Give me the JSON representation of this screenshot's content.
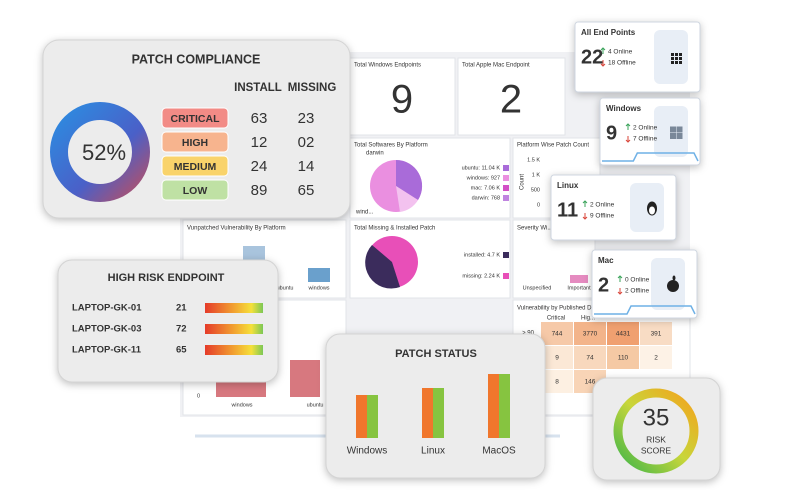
{
  "dashboard": {
    "windows_title": "Total Windows Endpoints",
    "windows_count": "9",
    "mac_title": "Total Apple Mac Endpoint",
    "mac_count": "2",
    "software_title": "Total Softwares By Platform",
    "software_legend": [
      "ubuntu: 11.04 K",
      "windows: 927",
      "mac: 7.06 K",
      "darwin: 768"
    ],
    "software_labels": [
      "darwin",
      "wind..."
    ],
    "platform_patch_title": "Platform Wise Patch Count",
    "platform_patch_ticks": [
      "1.5 K",
      "1 K",
      "500",
      "0"
    ],
    "count_label": "Count",
    "vuln_title": "Vunpatched Vulnerability By Platform",
    "vuln_labels": [
      "ubuntu",
      "windows"
    ],
    "missing_title": "Total Missing & Installed Patch",
    "missing_legend": [
      "installed: 4.7 K",
      "missing: 2.24 K"
    ],
    "severity_title": "Severity Wi...",
    "severity_labels": [
      "Unspecified",
      "Important"
    ],
    "published_title": "Vulnerability by Published Da...",
    "published_row_label": "> 90",
    "published_cols": [
      "Critical",
      "Hig..."
    ],
    "published_rows": [
      [
        "744",
        "3770",
        "4431",
        "391"
      ],
      [
        "9",
        "74",
        "110",
        "2"
      ],
      [
        "8",
        "146"
      ]
    ],
    "bottom_labels": [
      "windows",
      "ubuntu"
    ],
    "bottom_zero": "0"
  },
  "patch_compliance": {
    "title": "PATCH COMPLIANCE",
    "percent": "52%",
    "columns": [
      "INSTALL",
      "MISSING"
    ],
    "rows": [
      [
        "CRITICAL",
        "63",
        "23"
      ],
      [
        "HIGH",
        "12",
        "02"
      ],
      [
        "MEDIUM",
        "24",
        "14"
      ],
      [
        "LOW",
        "89",
        "65"
      ]
    ]
  },
  "high_risk": {
    "title": "HIGH RISK ENDPOINT",
    "rows": [
      [
        "LAPTOP-GK-01",
        "21"
      ],
      [
        "LAPTOP-GK-03",
        "72"
      ],
      [
        "LAPTOP-GK-11",
        "65"
      ]
    ]
  },
  "patch_status": {
    "title": "PATCH STATUS",
    "categories": [
      "Windows",
      "Linux",
      "MacOS"
    ],
    "values": [
      43,
      50,
      64
    ]
  },
  "risk_score": {
    "value": "35",
    "label1": "RISK",
    "label2": "SCORE"
  },
  "endpoints": [
    {
      "title": "All End Points",
      "count": "22",
      "online": "4 Online",
      "offline": "18 Offline"
    },
    {
      "title": "Windows",
      "count": "9",
      "online": "2 Online",
      "offline": "7 Offline"
    },
    {
      "title": "Linux",
      "count": "11",
      "online": "2 Online",
      "offline": "9 Offline"
    },
    {
      "title": "Mac",
      "count": "2",
      "online": "0 Online",
      "offline": "2 Offline"
    }
  ]
}
